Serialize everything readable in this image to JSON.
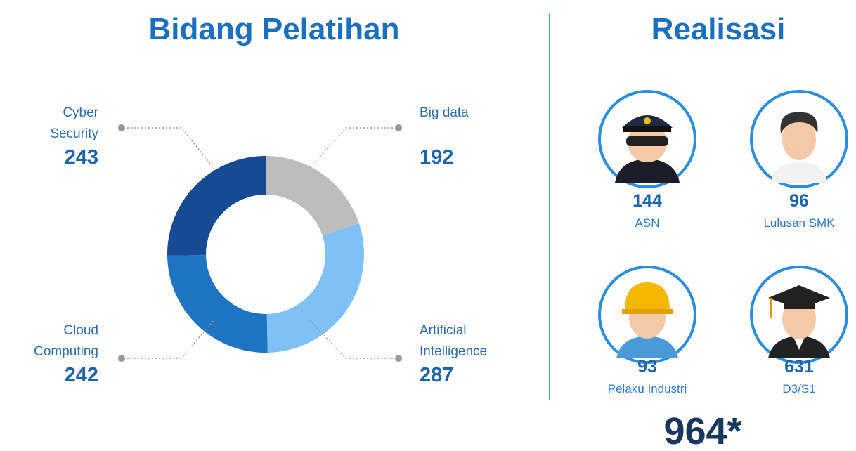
{
  "chart_data": {
    "type": "donut",
    "title": "Bidang Pelatihan",
    "categories": [
      "Big data",
      "Artificial Intelligence",
      "Cloud Computing",
      "Cyber Security"
    ],
    "values": [
      192,
      287,
      242,
      243
    ],
    "colors": [
      "#bdbdbd",
      "#7fc1f6",
      "#1c74c2",
      "#164b93"
    ]
  },
  "realisasi": {
    "title": "Realisasi",
    "items": [
      {
        "value": 144,
        "label": "ASN"
      },
      {
        "value": 96,
        "label": "Lulusan SMK"
      },
      {
        "value": 93,
        "label": "Pelaku Industri"
      },
      {
        "value": 631,
        "label": "D3/S1"
      }
    ],
    "total": {
      "value": 964,
      "label": "964*"
    }
  }
}
